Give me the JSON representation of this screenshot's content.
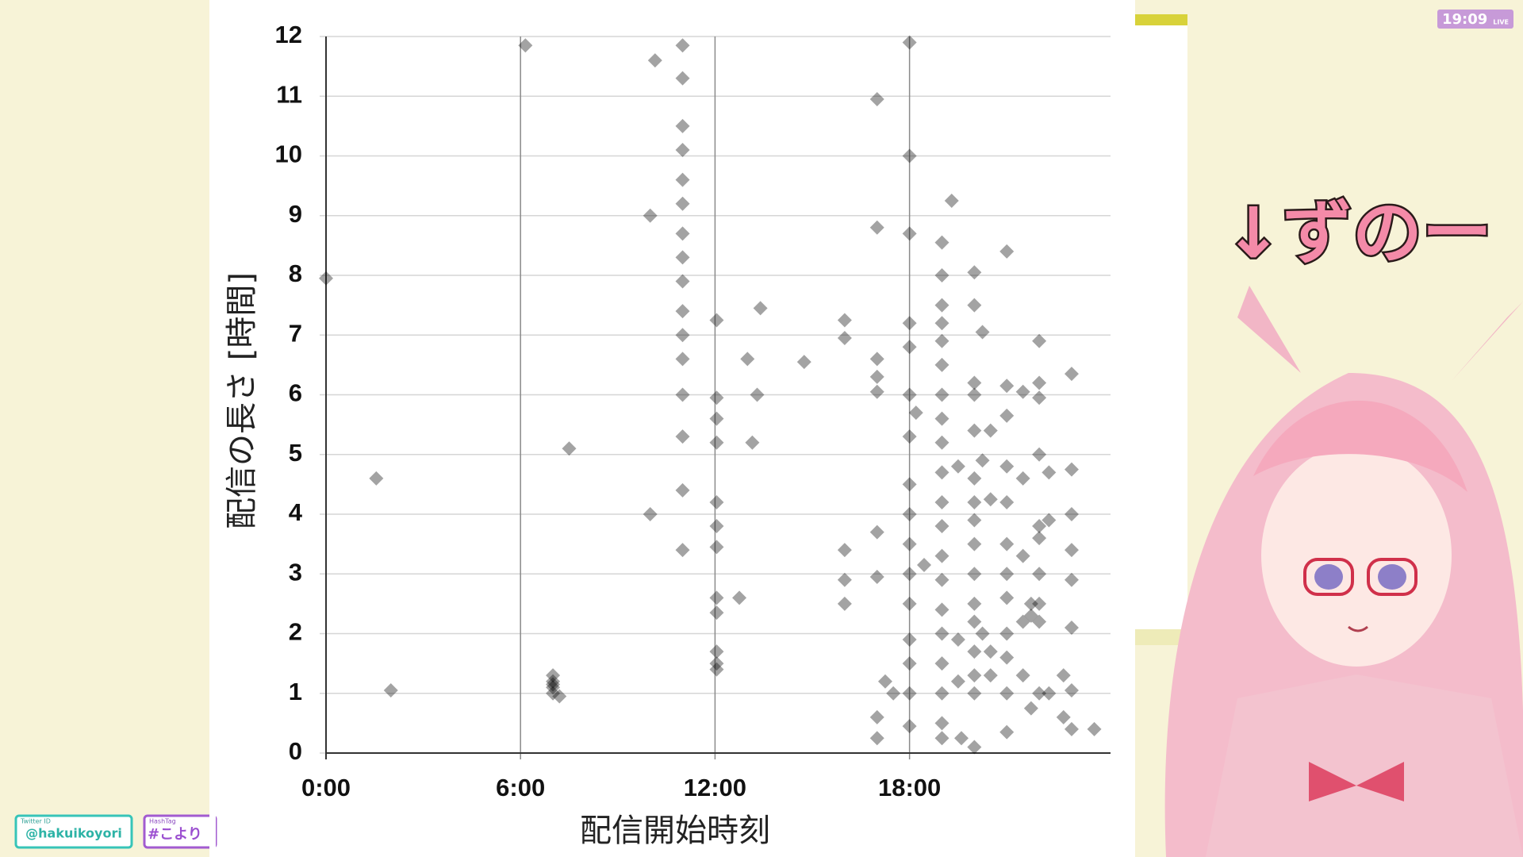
{
  "chart_data": {
    "type": "scatter",
    "x_label": "配信開始時刻",
    "y_label": "配信の長さ [時間]",
    "color": "#000000",
    "xlim": [
      0,
      24.2
    ],
    "ylim": [
      0,
      12
    ],
    "xticks": [
      {
        "value": 0,
        "label": "0:00"
      },
      {
        "value": 6,
        "label": "6:00"
      },
      {
        "value": 12,
        "label": "12:00"
      },
      {
        "value": 18,
        "label": "18:00"
      }
    ],
    "yticks": [
      0,
      1,
      2,
      3,
      4,
      5,
      6,
      7,
      8,
      9,
      10,
      11,
      12
    ],
    "grid": true,
    "x": [
      0,
      1.55,
      2,
      6.15,
      7,
      7,
      7,
      7,
      7,
      7.2,
      7.5,
      10,
      10,
      10.15,
      11,
      11,
      11,
      11,
      11,
      11,
      11,
      11,
      11,
      11,
      11,
      11,
      11,
      11,
      11,
      11,
      12.05,
      12.05,
      12.05,
      12.05,
      12.05,
      12.05,
      12.05,
      12.05,
      12.05,
      12.05,
      12.05,
      12.05,
      12.75,
      13,
      13.15,
      13.3,
      13.4,
      14.75,
      16,
      16,
      16,
      16,
      16,
      17,
      17,
      17,
      17,
      17,
      17,
      17,
      17,
      17,
      17.25,
      17.5,
      18,
      18,
      18,
      18,
      18,
      18,
      18,
      18,
      18,
      18,
      18,
      18,
      18,
      18,
      18,
      18,
      18.2,
      18.45,
      19,
      19,
      19,
      19,
      19,
      19,
      19,
      19,
      19,
      19,
      19,
      19,
      19,
      19,
      19,
      19,
      19,
      19,
      19,
      19,
      19.3,
      19.5,
      19.5,
      19.5,
      19.6,
      20,
      20,
      20,
      20,
      20,
      20,
      20,
      20,
      20,
      20,
      20,
      20,
      20,
      20,
      20,
      20,
      20.25,
      20.25,
      20.25,
      20.5,
      20.5,
      20.5,
      20.5,
      21,
      21,
      21,
      21,
      21,
      21,
      21,
      21,
      21,
      21,
      21,
      21,
      21.5,
      21.5,
      21.5,
      21.5,
      21.5,
      21.75,
      21.75,
      21.75,
      22,
      22,
      22,
      22,
      22,
      22,
      22,
      22,
      22,
      22,
      22.3,
      22.3,
      22.3,
      22.75,
      22.75,
      23,
      23,
      23,
      23,
      23,
      23,
      23,
      23,
      23.7
    ],
    "values": [
      7.95,
      4.6,
      1.05,
      11.85,
      1.0,
      1.1,
      1.2,
      1.3,
      1.15,
      0.95,
      5.1,
      9.0,
      4.0,
      11.6,
      11.85,
      11.3,
      10.5,
      10.1,
      9.6,
      9.2,
      8.7,
      8.3,
      7.9,
      7.4,
      7.0,
      6.6,
      6.0,
      5.3,
      4.4,
      3.4,
      7.25,
      5.95,
      5.6,
      5.2,
      4.2,
      3.8,
      3.45,
      2.6,
      2.35,
      1.7,
      1.5,
      1.4,
      2.6,
      6.6,
      5.2,
      6.0,
      7.45,
      6.55,
      7.25,
      6.95,
      3.4,
      2.9,
      2.5,
      10.95,
      8.8,
      6.6,
      6.3,
      6.05,
      3.7,
      2.95,
      0.6,
      0.25,
      1.2,
      1.0,
      11.9,
      10.0,
      8.7,
      7.2,
      6.8,
      6.0,
      5.3,
      4.5,
      4.0,
      3.5,
      3.0,
      2.5,
      1.9,
      1.5,
      1.0,
      0.45,
      5.7,
      3.15,
      8.55,
      8.0,
      7.5,
      7.2,
      6.9,
      6.5,
      6.0,
      5.6,
      5.2,
      4.7,
      4.2,
      3.8,
      3.3,
      2.9,
      2.4,
      2.0,
      1.5,
      1.0,
      0.5,
      0.25,
      9.25,
      4.8,
      1.9,
      1.2,
      0.25,
      8.05,
      7.5,
      6.2,
      6.0,
      5.4,
      4.6,
      4.2,
      3.9,
      3.5,
      3.0,
      2.5,
      2.2,
      1.7,
      1.3,
      1.0,
      0.1,
      7.05,
      4.9,
      2.0,
      5.4,
      4.25,
      1.7,
      1.3,
      8.4,
      6.15,
      5.65,
      4.8,
      4.2,
      3.5,
      3.0,
      2.6,
      2.0,
      1.6,
      1.0,
      0.35,
      6.05,
      4.6,
      3.3,
      2.2,
      1.3,
      2.5,
      2.3,
      0.75,
      6.9,
      6.2,
      5.95,
      5.0,
      3.8,
      3.6,
      3.0,
      2.5,
      2.2,
      1.0,
      4.7,
      3.9,
      1.0,
      1.3,
      0.6,
      6.35,
      4.75,
      4.0,
      3.4,
      2.9,
      2.1,
      1.05,
      0.4,
      0.4
    ]
  },
  "overlay": {
    "caption": "↓ずのー",
    "clock": "19:09",
    "live": "LIVE",
    "twitter_label": "Twitter ID",
    "twitter_handle": "@hakuikoyori",
    "hashtag_label": "HashTag",
    "hashtag": "#こより"
  }
}
